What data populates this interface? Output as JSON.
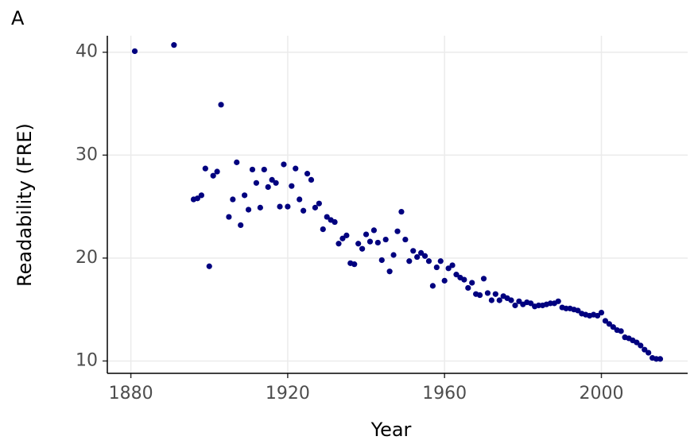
{
  "chart_data": {
    "type": "scatter",
    "panel_label": "A",
    "x_label": "Year",
    "y_label": "Readability (FRE)",
    "color": "#00007f",
    "grid": true,
    "xlim": [
      1874,
      2022
    ],
    "ylim": [
      8.8,
      41.6
    ],
    "xticks": [
      1880,
      1920,
      1960,
      2000
    ],
    "yticks": [
      10,
      20,
      30,
      40
    ],
    "x": [
      1881,
      1891,
      1896,
      1897,
      1898,
      1899,
      1900,
      1901,
      1902,
      1903,
      1905,
      1906,
      1907,
      1908,
      1909,
      1910,
      1911,
      1912,
      1913,
      1914,
      1915,
      1916,
      1917,
      1918,
      1919,
      1920,
      1921,
      1922,
      1923,
      1924,
      1925,
      1926,
      1927,
      1928,
      1929,
      1930,
      1931,
      1932,
      1933,
      1934,
      1935,
      1936,
      1937,
      1938,
      1939,
      1940,
      1941,
      1942,
      1943,
      1944,
      1945,
      1946,
      1947,
      1948,
      1949,
      1950,
      1951,
      1952,
      1953,
      1954,
      1955,
      1956,
      1957,
      1958,
      1959,
      1960,
      1961,
      1962,
      1963,
      1964,
      1965,
      1966,
      1967,
      1968,
      1969,
      1970,
      1971,
      1972,
      1973,
      1974,
      1975,
      1976,
      1977,
      1978,
      1979,
      1980,
      1981,
      1982,
      1983,
      1984,
      1985,
      1986,
      1987,
      1988,
      1989,
      1990,
      1991,
      1992,
      1993,
      1994,
      1995,
      1996,
      1997,
      1998,
      1999,
      2000,
      2001,
      2002,
      2003,
      2004,
      2005,
      2006,
      2007,
      2008,
      2009,
      2010,
      2011,
      2012,
      2013,
      2014,
      2015
    ],
    "values": [
      40.1,
      40.7,
      25.7,
      25.8,
      26.1,
      28.7,
      19.2,
      28.0,
      28.4,
      34.9,
      24.0,
      25.7,
      29.3,
      23.2,
      26.1,
      24.7,
      28.6,
      27.3,
      24.9,
      28.6,
      26.9,
      27.6,
      27.3,
      25.0,
      29.1,
      25.0,
      27.0,
      28.7,
      25.7,
      24.6,
      28.2,
      27.6,
      24.9,
      25.3,
      22.8,
      24.0,
      23.7,
      23.5,
      21.4,
      21.9,
      22.2,
      19.5,
      19.4,
      21.4,
      20.9,
      22.3,
      21.6,
      22.7,
      21.5,
      19.8,
      21.8,
      18.7,
      20.3,
      22.6,
      24.5,
      21.8,
      19.7,
      20.7,
      20.1,
      20.5,
      20.2,
      19.7,
      17.3,
      19.1,
      19.7,
      17.8,
      19.0,
      19.3,
      18.4,
      18.1,
      17.9,
      17.1,
      17.6,
      16.5,
      16.4,
      18.0,
      16.6,
      15.9,
      16.5,
      15.9,
      16.3,
      16.1,
      15.9,
      15.4,
      15.8,
      15.5,
      15.7,
      15.6,
      15.3,
      15.4,
      15.4,
      15.5,
      15.6,
      15.6,
      15.8,
      15.2,
      15.1,
      15.1,
      15.0,
      14.9,
      14.6,
      14.5,
      14.4,
      14.5,
      14.4,
      14.7,
      13.9,
      13.6,
      13.3,
      13.0,
      12.9,
      12.3,
      12.2,
      12.0,
      11.8,
      11.5,
      11.1,
      10.8,
      10.3,
      10.2,
      10.2
    ]
  }
}
